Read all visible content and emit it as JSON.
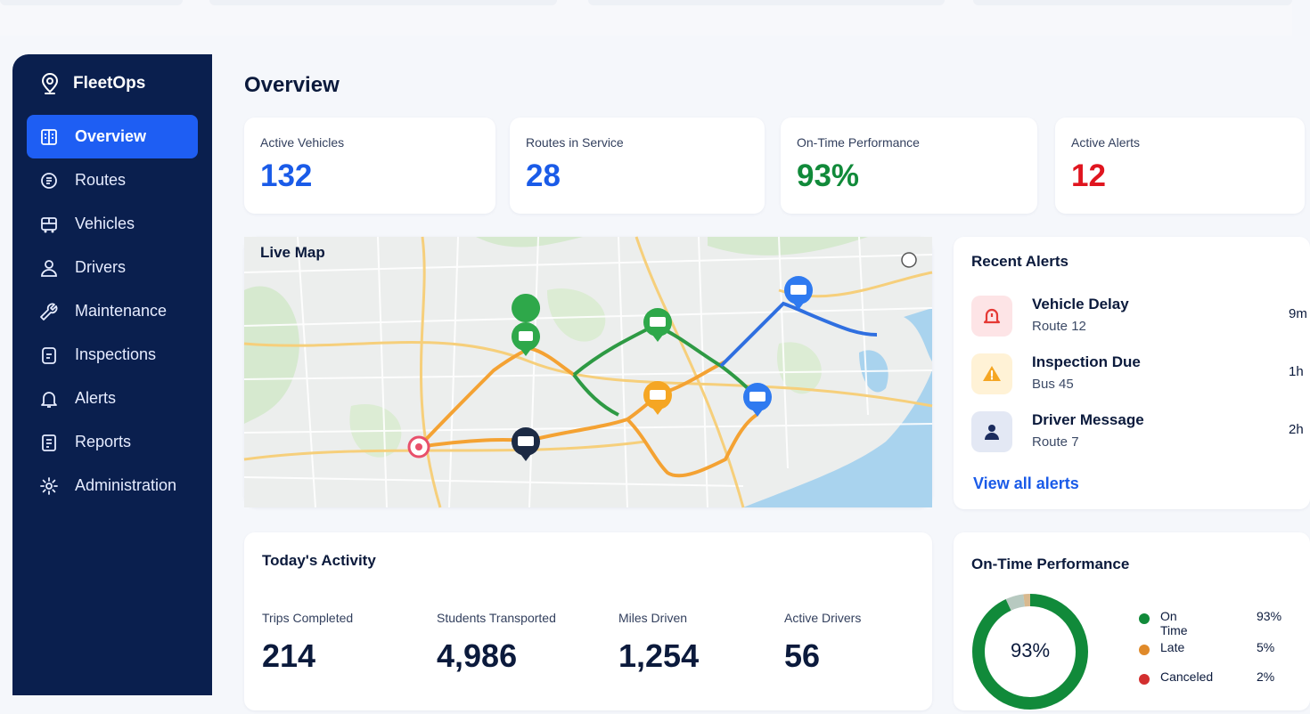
{
  "app": {
    "name": "FleetOps"
  },
  "sidebar": {
    "items": [
      {
        "label": "Overview",
        "icon": "overview-icon",
        "active": true
      },
      {
        "label": "Routes",
        "icon": "routes-icon"
      },
      {
        "label": "Vehicles",
        "icon": "bus-icon"
      },
      {
        "label": "Drivers",
        "icon": "user-icon"
      },
      {
        "label": "Maintenance",
        "icon": "wrench-icon"
      },
      {
        "label": "Inspections",
        "icon": "clipboard-icon"
      },
      {
        "label": "Alerts",
        "icon": "bell-icon"
      },
      {
        "label": "Reports",
        "icon": "report-icon"
      },
      {
        "label": "Administration",
        "icon": "gear-icon"
      }
    ]
  },
  "page": {
    "title": "Overview"
  },
  "stats": [
    {
      "label": "Active Vehicles",
      "value": "132",
      "color": "#1a5be8"
    },
    {
      "label": "Routes in Service",
      "value": "28",
      "color": "#1a5be8"
    },
    {
      "label": "On-Time Performance",
      "value": "93%",
      "color": "#118a3a"
    },
    {
      "label": "Active Alerts",
      "value": "12",
      "color": "#e0151f"
    }
  ],
  "map": {
    "title": "Live Map"
  },
  "alerts": {
    "title": "Recent Alerts",
    "items": [
      {
        "title": "Vehicle Delay",
        "sub": "Route 12",
        "time": "9m",
        "icon": "warning-bell-icon",
        "color": "#e53935"
      },
      {
        "title": "Inspection Due",
        "sub": "Bus 45",
        "time": "1h",
        "icon": "warning-triangle-icon",
        "color": "#f5a623"
      },
      {
        "title": "Driver Message",
        "sub": "Route 7",
        "time": "2h",
        "icon": "driver-icon",
        "color": "#1b2c5e"
      }
    ],
    "view_all": "View all alerts"
  },
  "activity": {
    "title": "Today's Activity",
    "items": [
      {
        "label": "Trips Completed",
        "value": "214"
      },
      {
        "label": "Students Transported",
        "value": "4,986"
      },
      {
        "label": "Miles Driven",
        "value": "1,254"
      },
      {
        "label": "Active Drivers",
        "value": "56"
      }
    ]
  },
  "performance": {
    "title": "On-Time Performance",
    "center_label": "93%",
    "legend": [
      {
        "name": "On Time",
        "value": "93%",
        "color": "#118a3a"
      },
      {
        "name": "Late",
        "value": "5%",
        "color": "#e08a2a"
      },
      {
        "name": "Canceled",
        "value": "2%",
        "color": "#d32f2f"
      }
    ]
  },
  "colors": {
    "sidebar": "#0a1f4e",
    "accent": "#1e5ef3",
    "route_green": "#2e9a44",
    "route_orange": "#f4a233",
    "route_blue": "#2f6fe0"
  }
}
